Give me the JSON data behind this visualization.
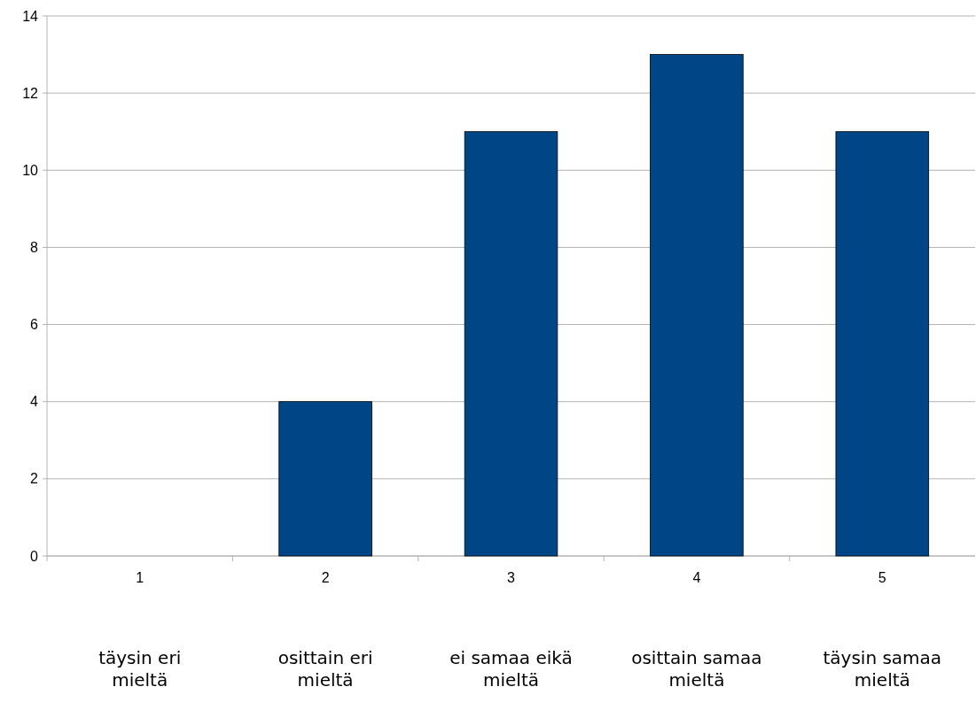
{
  "chart_data": {
    "type": "bar",
    "categories": [
      "1",
      "2",
      "3",
      "4",
      "5"
    ],
    "values": [
      0,
      4,
      11,
      13,
      11
    ],
    "color": "#004586",
    "ylim": [
      0,
      14
    ],
    "yticks": [
      0,
      2,
      4,
      6,
      8,
      10,
      12,
      14
    ],
    "grid": "y",
    "annotations": [
      "täysin eri mieltä",
      "osittain eri mieltä",
      "ei samaa eikä mieltä",
      "osittain samaa mieltä",
      "täysin samaa mieltä"
    ]
  }
}
